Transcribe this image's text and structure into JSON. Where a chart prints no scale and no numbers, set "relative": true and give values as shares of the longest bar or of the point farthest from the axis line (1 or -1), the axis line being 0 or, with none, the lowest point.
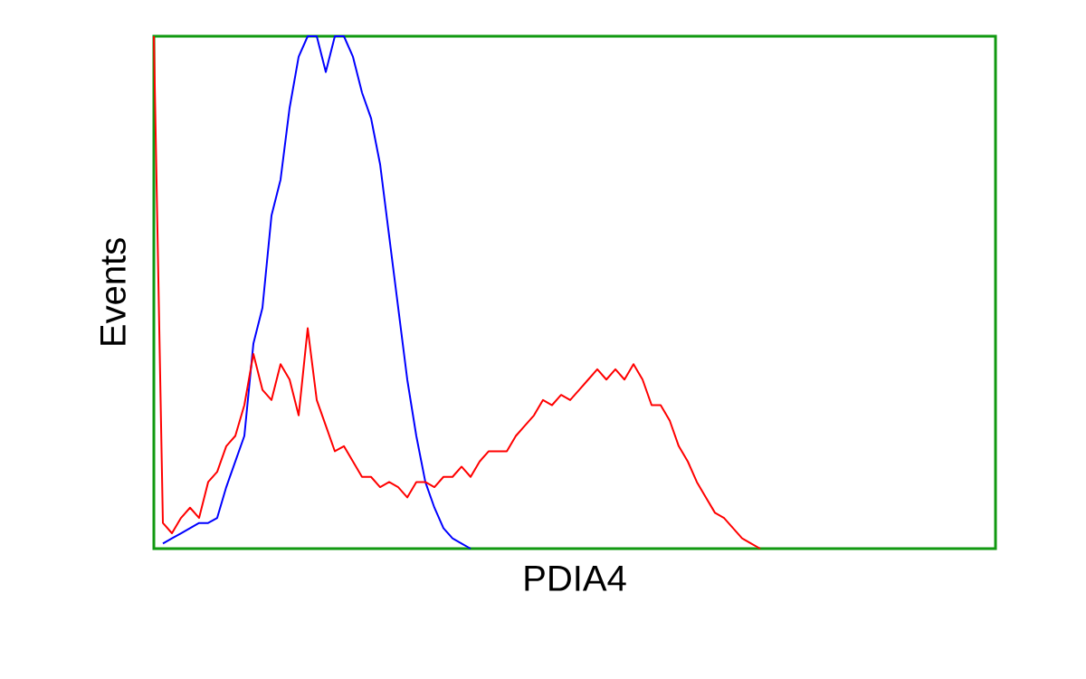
{
  "chart_data": {
    "type": "line",
    "relative": true,
    "xlabel": "PDIA4",
    "ylabel": "Events",
    "categories": [
      null,
      null,
      null,
      null,
      null,
      null,
      null,
      null,
      null,
      null,
      null,
      null,
      null,
      null,
      null,
      null,
      null,
      null,
      null,
      null,
      null,
      null,
      null,
      null,
      null,
      null,
      null,
      null,
      null,
      null,
      null,
      null,
      null,
      null,
      null,
      null,
      null,
      null,
      null,
      null,
      null,
      null,
      null,
      null,
      null,
      null,
      null,
      null,
      null,
      null,
      null,
      null,
      null,
      null,
      null,
      null,
      null,
      null,
      null,
      null,
      null,
      null,
      null,
      null,
      null,
      null,
      null,
      null,
      null,
      null,
      null,
      null,
      null,
      null,
      null,
      null,
      null,
      null,
      null,
      null,
      null,
      null,
      null,
      null,
      null,
      null,
      null,
      null,
      null,
      null,
      null,
      null,
      null,
      null
    ],
    "series": [
      {
        "color": "#0000ff",
        "values": [
          null,
          0.01,
          0.02,
          0.03,
          0.04,
          0.05,
          0.05,
          0.06,
          0.12,
          0.17,
          0.22,
          0.4,
          0.47,
          0.65,
          0.72,
          0.86,
          0.96,
          1.0,
          1.0,
          0.93,
          1.0,
          1.0,
          0.96,
          0.89,
          0.84,
          0.75,
          0.61,
          0.47,
          0.33,
          0.22,
          0.13,
          0.08,
          0.04,
          0.02,
          0.01,
          0,
          null,
          null,
          null,
          null,
          null,
          null,
          null,
          null,
          null,
          null,
          null,
          null,
          null,
          null,
          null,
          null,
          null,
          null,
          null,
          null,
          null,
          null,
          null,
          null,
          null,
          null,
          null,
          null,
          null,
          null,
          null,
          null,
          null,
          null,
          null,
          null,
          null,
          null,
          null,
          null,
          null,
          null,
          null,
          null,
          null,
          null,
          null,
          null,
          null,
          null,
          null,
          null,
          null,
          null,
          null,
          null,
          null,
          null
        ]
      },
      {
        "color": "#ff0000",
        "values": [
          1.0,
          0.05,
          0.03,
          0.06,
          0.08,
          0.06,
          0.13,
          0.15,
          0.2,
          0.22,
          0.28,
          0.38,
          0.31,
          0.29,
          0.36,
          0.33,
          0.26,
          0.43,
          0.29,
          0.24,
          0.19,
          0.2,
          0.17,
          0.14,
          0.14,
          0.12,
          0.13,
          0.12,
          0.1,
          0.13,
          0.13,
          0.12,
          0.14,
          0.14,
          0.16,
          0.14,
          0.17,
          0.19,
          0.19,
          0.19,
          0.22,
          0.24,
          0.26,
          0.29,
          0.28,
          0.3,
          0.29,
          0.31,
          0.33,
          0.35,
          0.33,
          0.35,
          0.33,
          0.36,
          0.33,
          0.28,
          0.28,
          0.25,
          0.2,
          0.17,
          0.13,
          0.1,
          0.07,
          0.06,
          0.04,
          0.02,
          0.01,
          0,
          null,
          null,
          null,
          null,
          null,
          null,
          null,
          null,
          null,
          null,
          null,
          null,
          null,
          null,
          null,
          null,
          null,
          null,
          null,
          null,
          null,
          null,
          null,
          null,
          null,
          null
        ]
      }
    ]
  }
}
